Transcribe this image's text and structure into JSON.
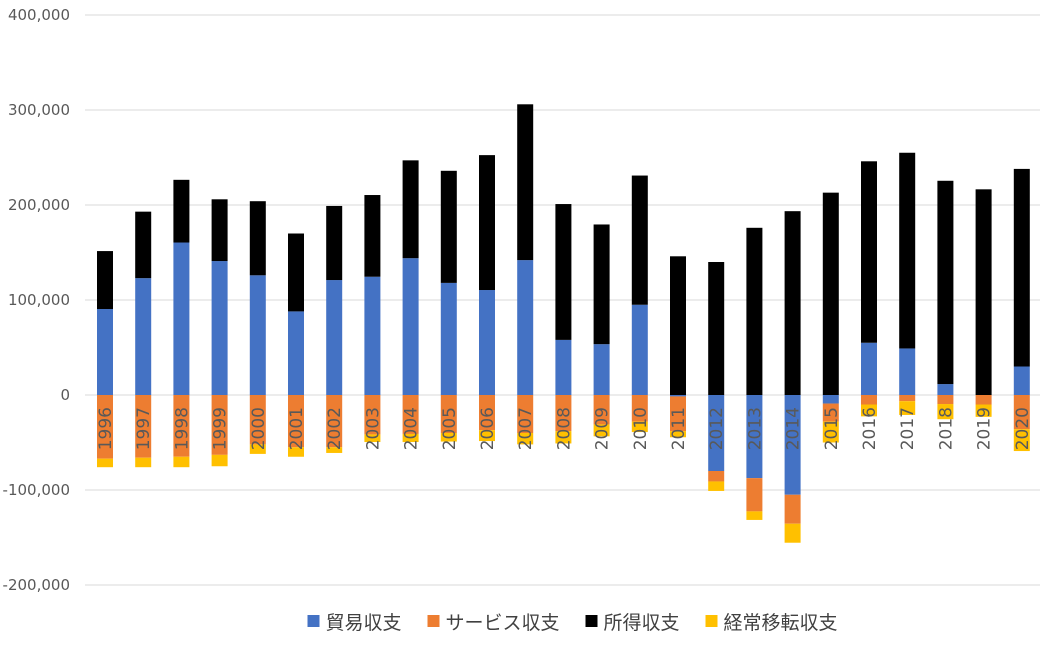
{
  "chart_data": {
    "type": "bar",
    "stacked": true,
    "title": "",
    "xlabel": "",
    "ylabel": "",
    "ylim": [
      -200000,
      400000
    ],
    "yticks": [
      400000,
      300000,
      200000,
      100000,
      0,
      -100000,
      -200000
    ],
    "ytick_labels": [
      "400,000",
      "300,000",
      "200,000",
      "100,000",
      "0",
      "-100,000",
      "-200,000"
    ],
    "grid": true,
    "legend_position": "bottom",
    "categories": [
      "1996",
      "1997",
      "1998",
      "1999",
      "2000",
      "2001",
      "2002",
      "2003",
      "2004",
      "2005",
      "2006",
      "2007",
      "2008",
      "2009",
      "2010",
      "2011",
      "2012",
      "2013",
      "2014",
      "2015",
      "2016",
      "2017",
      "2018",
      "2019",
      "2020"
    ],
    "series": [
      {
        "name": "貿易収支",
        "color": "#4472C4",
        "values": [
          90500,
          123000,
          160500,
          141000,
          126000,
          88000,
          121000,
          124500,
          144000,
          118000,
          110500,
          142000,
          58000,
          53500,
          95000,
          -1500,
          -80000,
          -87500,
          -105000,
          -9000,
          55000,
          49000,
          11500,
          0,
          30000
        ]
      },
      {
        "name": "サービス収支",
        "color": "#ED7D31",
        "values": [
          -67000,
          -66000,
          -65000,
          -63000,
          -52000,
          -55000,
          -55000,
          -41500,
          -41000,
          -40000,
          -37000,
          -40000,
          -38000,
          -31000,
          -28000,
          -36500,
          -11000,
          -35000,
          -30500,
          -19000,
          -10000,
          -6500,
          -9500,
          -10000,
          -36000
        ]
      },
      {
        "name": "所得収支",
        "color": "#000000",
        "values": [
          61000,
          70000,
          66000,
          65000,
          78000,
          82000,
          78000,
          86000,
          103000,
          118000,
          142000,
          164000,
          143000,
          126000,
          136000,
          146000,
          140000,
          176000,
          193500,
          213000,
          191000,
          206000,
          214000,
          216500,
          208000
        ]
      },
      {
        "name": "経常移転収支",
        "color": "#FFC000",
        "values": [
          -9000,
          -10000,
          -11000,
          -12000,
          -10000,
          -10000,
          -6000,
          -8000,
          -8500,
          -9000,
          -11500,
          -12000,
          -13000,
          -12500,
          -11000,
          -6500,
          -10000,
          -9000,
          -20000,
          -22000,
          -12500,
          -14500,
          -16000,
          -13000,
          -23000
        ]
      }
    ]
  }
}
